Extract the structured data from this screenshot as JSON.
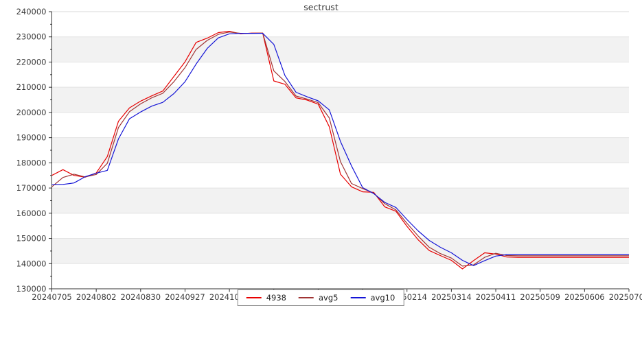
{
  "title": "sectrust",
  "legend": {
    "items": [
      {
        "label": "4938",
        "color": "#e80000"
      },
      {
        "label": "avg5",
        "color": "#a03434"
      },
      {
        "label": "avg10",
        "color": "#1515d6"
      }
    ]
  },
  "chart_data": {
    "type": "line",
    "title": "sectrust",
    "xlabel": "",
    "ylabel": "",
    "ylim": [
      130000,
      240000
    ],
    "ytick_step": 10000,
    "ytick_minor_step": 5000,
    "grid": "horizontal-bands",
    "band_colors": [
      "#ffffff",
      "#f2f2f2"
    ],
    "gridline_color": "#e3e3e3",
    "legend_position": "lower center",
    "xtick_every": 4,
    "xtick_labels": [
      "20240705",
      "20240802",
      "20240830",
      "20240927",
      "20241025",
      "20241122",
      "20241220",
      "20250117",
      "20250214",
      "20250314",
      "20250411",
      "20250509",
      "20250606",
      "20250704"
    ],
    "x_dates": [
      "20240705",
      "20240712",
      "20240719",
      "20240726",
      "20240802",
      "20240809",
      "20240816",
      "20240823",
      "20240830",
      "20240906",
      "20240913",
      "20240920",
      "20240927",
      "20241004",
      "20241011",
      "20241018",
      "20241025",
      "20241101",
      "20241108",
      "20241115",
      "20241122",
      "20241129",
      "20241206",
      "20241213",
      "20241220",
      "20241227",
      "20250103",
      "20250110",
      "20250117",
      "20250124",
      "20250131",
      "20250207",
      "20250214",
      "20250221",
      "20250228",
      "20250307",
      "20250314",
      "20250321",
      "20250328",
      "20250404",
      "20250411",
      "20250418",
      "20250425",
      "20250502",
      "20250509",
      "20250516",
      "20250523",
      "20250530",
      "20250606",
      "20250613",
      "20250620",
      "20250627",
      "20250704"
    ],
    "series": [
      {
        "name": "4938",
        "color": "#e80000",
        "values": [
          175000,
          177300,
          175000,
          174300,
          176000,
          182500,
          196500,
          201800,
          204500,
          206600,
          208500,
          214300,
          220100,
          227800,
          229500,
          231700,
          232200,
          231200,
          231500,
          231500,
          212500,
          211200,
          205800,
          204900,
          203300,
          194300,
          175500,
          170500,
          168500,
          168300,
          162500,
          160800,
          154800,
          149500,
          145200,
          143200,
          141300,
          137900,
          141200,
          144300,
          143800,
          142600,
          142500,
          142500,
          142500,
          142500,
          142500,
          142500,
          142500,
          142500,
          142500,
          142500,
          142500
        ]
      },
      {
        "name": "avg5",
        "color": "#a03434",
        "values": [
          170500,
          174200,
          175500,
          174400,
          175400,
          179800,
          194000,
          200300,
          203400,
          205800,
          207600,
          212200,
          217800,
          225000,
          228600,
          231000,
          231900,
          231400,
          231400,
          231500,
          216500,
          212300,
          206500,
          205300,
          203900,
          197800,
          180500,
          171800,
          169800,
          168000,
          163800,
          161300,
          156000,
          151000,
          146500,
          144000,
          142200,
          139000,
          139500,
          142500,
          144100,
          143200,
          143100,
          143100,
          143100,
          143100,
          143100,
          143100,
          143100,
          143100,
          143100,
          143100,
          143100
        ]
      },
      {
        "name": "avg10",
        "color": "#1515d6",
        "values": [
          171300,
          171400,
          172000,
          174500,
          175900,
          177000,
          189500,
          197500,
          200200,
          202500,
          204000,
          207500,
          212200,
          219200,
          225400,
          229600,
          231200,
          231400,
          231400,
          231400,
          227000,
          214700,
          208000,
          206200,
          204600,
          201000,
          188500,
          178800,
          170200,
          167800,
          164300,
          162300,
          157500,
          153000,
          149200,
          146500,
          144300,
          141300,
          139200,
          141200,
          143000,
          143600,
          143600,
          143600,
          143600,
          143600,
          143600,
          143600,
          143600,
          143600,
          143600,
          143600,
          143600
        ]
      }
    ]
  }
}
